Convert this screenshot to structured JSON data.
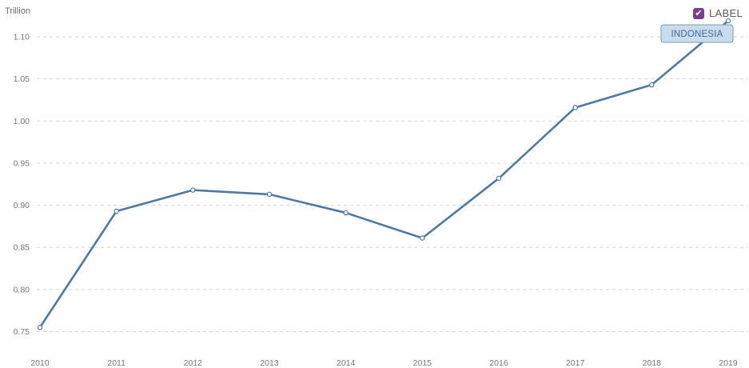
{
  "chart": {
    "unit_label": "Trillion",
    "legend_toggle_label": "LABEL",
    "legend_checked": true,
    "colors": {
      "line": "#4f79a3",
      "grid": "#d6d6d6",
      "checkbox": "#7b3f8f",
      "tag_fill": "#c9dcee",
      "tag_border": "#7f9ab6",
      "tag_text": "#3f6a95"
    }
  },
  "chart_data": {
    "type": "line",
    "x": [
      "2010",
      "2011",
      "2012",
      "2013",
      "2014",
      "2015",
      "2016",
      "2017",
      "2018",
      "2019"
    ],
    "series": [
      {
        "name": "INDONESIA",
        "values": [
          0.755,
          0.893,
          0.918,
          0.913,
          0.891,
          0.861,
          0.932,
          1.016,
          1.043,
          1.119
        ]
      }
    ],
    "ylim": [
      0.74,
      1.12
    ],
    "yticks": [
      "0.75",
      "0.80",
      "0.85",
      "0.90",
      "0.95",
      "1.00",
      "1.05",
      "1.10"
    ],
    "grid": true,
    "legend": "top-right"
  }
}
